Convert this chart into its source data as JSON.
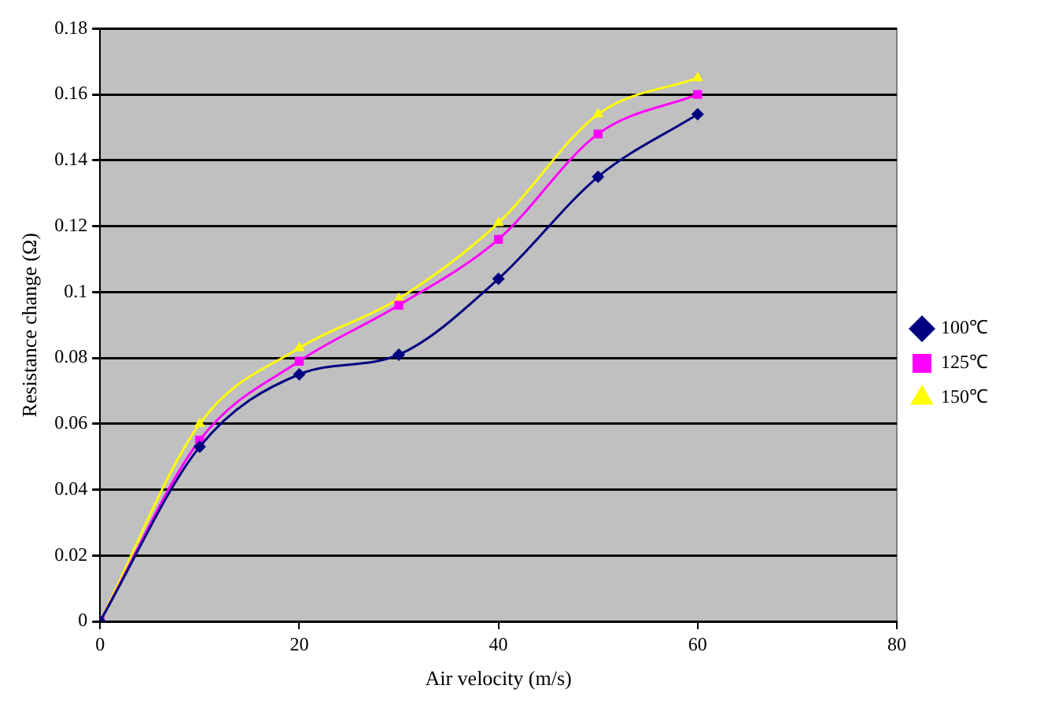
{
  "chart_data": {
    "type": "line",
    "xlabel": "Air velocity (m/s)",
    "ylabel": "Resistance change (Ω)",
    "x": [
      0,
      10,
      20,
      30,
      40,
      50,
      60
    ],
    "series": [
      {
        "name": "100℃",
        "color": "#000080",
        "marker": "diamond",
        "values": [
          0,
          0.053,
          0.075,
          0.081,
          0.104,
          0.135,
          0.154
        ]
      },
      {
        "name": "125℃",
        "color": "#ff00ff",
        "marker": "square",
        "values": [
          0,
          0.055,
          0.079,
          0.096,
          0.116,
          0.148,
          0.16
        ]
      },
      {
        "name": "150℃",
        "color": "#ffff00",
        "marker": "triangle",
        "values": [
          0,
          0.06,
          0.083,
          0.098,
          0.121,
          0.154,
          0.165
        ]
      }
    ],
    "xlim": [
      0,
      80
    ],
    "xticks": [
      0,
      20,
      40,
      60,
      80
    ],
    "ylim": [
      0,
      0.18
    ],
    "yticks": [
      0,
      0.02,
      0.04,
      0.06,
      0.08,
      0.1,
      0.12,
      0.14,
      0.16,
      0.18
    ],
    "grid": "y",
    "legend": "right"
  }
}
